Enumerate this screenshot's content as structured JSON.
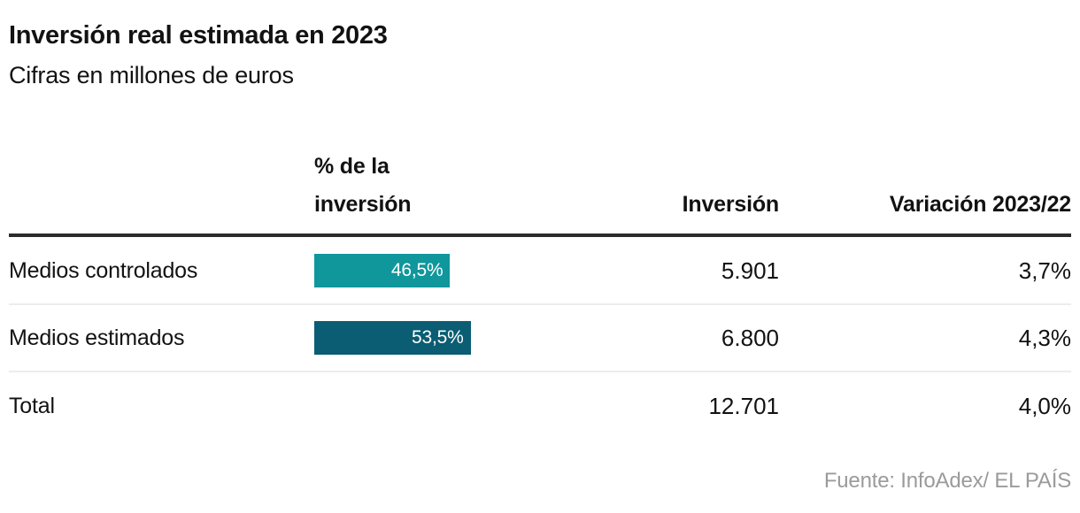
{
  "header": {
    "title": "Inversión real estimada en 2023",
    "subtitle": "Cifras en millones de euros"
  },
  "table": {
    "columns": {
      "share_line1": "% de la",
      "share_line2": "inversión",
      "investment": "Inversión",
      "variation": "Variación 2023/22"
    },
    "rows": [
      {
        "label": "Medios controlados",
        "share_label": "46,5%",
        "share_value": 46.5,
        "bar_color": "#0f979c",
        "investment": "5.901",
        "variation": "3,7%"
      },
      {
        "label": "Medios estimados",
        "share_label": "53,5%",
        "share_value": 53.5,
        "bar_color": "#0a5d72",
        "investment": "6.800",
        "variation": "4,3%"
      },
      {
        "label": "Total",
        "investment": "12.701",
        "variation": "4,0%"
      }
    ]
  },
  "footer": {
    "source": "Fuente: InfoAdex/ EL PAÍS"
  },
  "colors": {
    "bar_teal": "#0f979c",
    "bar_dark_teal": "#0a5d72",
    "thick_rule": "#2b2b2b",
    "row_separator": "#ececec",
    "source_gray": "#9b9b9b",
    "text": "#121212",
    "background": "#ffffff"
  },
  "chart_data": {
    "type": "table",
    "title": "Inversión real estimada en 2023",
    "subtitle": "Cifras en millones de euros",
    "columns": [
      "",
      "% de la inversión",
      "Inversión",
      "Variación 2023/22"
    ],
    "rows": [
      [
        "Medios controlados",
        46.5,
        5901,
        3.7
      ],
      [
        "Medios estimados",
        53.5,
        6800,
        4.3
      ],
      [
        "Total",
        null,
        12701,
        4.0
      ]
    ],
    "units": "millones de euros; porcentajes con coma decimal",
    "layout": "share column rendered as horizontal bars with in-bar white labels, bar width proportional to percentage",
    "source": "Fuente: InfoAdex/ EL PAÍS"
  }
}
